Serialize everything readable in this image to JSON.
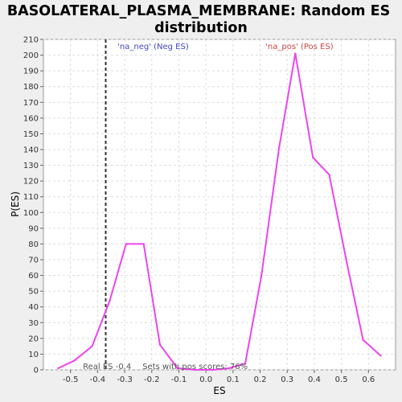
{
  "chart_data": {
    "type": "line",
    "title": "BASOLATERAL_PLASMA_MEMBRANE: Random ES distribution",
    "title_lines": [
      "BASOLATERAL_PLASMA_MEMBRANE: Random ES",
      "distribution"
    ],
    "xlabel": "ES",
    "ylabel": "P(ES)",
    "xlim": [
      -0.6,
      0.7
    ],
    "ylim": [
      0,
      210
    ],
    "x_ticks": [
      -0.5,
      -0.4,
      -0.3,
      -0.2,
      -0.1,
      0.0,
      0.1,
      0.2,
      0.3,
      0.4,
      0.5,
      0.6
    ],
    "x_tick_labels": [
      "-0.5",
      "-0.4",
      "-0.3",
      "-0.2",
      "-0.1",
      "0.0",
      "0.1",
      "0.2",
      "0.3",
      "0.4",
      "0.5",
      "0.6"
    ],
    "y_ticks": [
      0,
      10,
      20,
      30,
      40,
      50,
      60,
      70,
      80,
      90,
      100,
      110,
      120,
      130,
      140,
      150,
      160,
      170,
      180,
      190,
      200,
      210
    ],
    "grid": true,
    "series": [
      {
        "color": "#ee44ee",
        "x": [
          -0.545,
          -0.485,
          -0.42,
          -0.355,
          -0.295,
          -0.23,
          -0.17,
          -0.105,
          -0.04,
          0.025,
          0.085,
          0.145,
          0.205,
          0.27,
          0.33,
          0.395,
          0.455,
          0.52,
          0.58,
          0.645
        ],
        "y": [
          1,
          6,
          15,
          44,
          80,
          80,
          16,
          1,
          0,
          0,
          1,
          4,
          60,
          141,
          201,
          135,
          124,
          68,
          19,
          9
        ]
      }
    ],
    "annotations": {
      "neg_label": "'na_neg' (Neg ES)",
      "pos_label": "'na_pos' (Pos ES)",
      "real_es_label": "Real ES -0.4",
      "real_es_value": -0.37,
      "pos_scores_label": "Sets with pos scores: 76%"
    },
    "colors": {
      "neg": "#4444cc",
      "pos": "#cc4444",
      "line": "#ee44ee",
      "marker": "#333333",
      "annot_text": "#555555"
    }
  }
}
